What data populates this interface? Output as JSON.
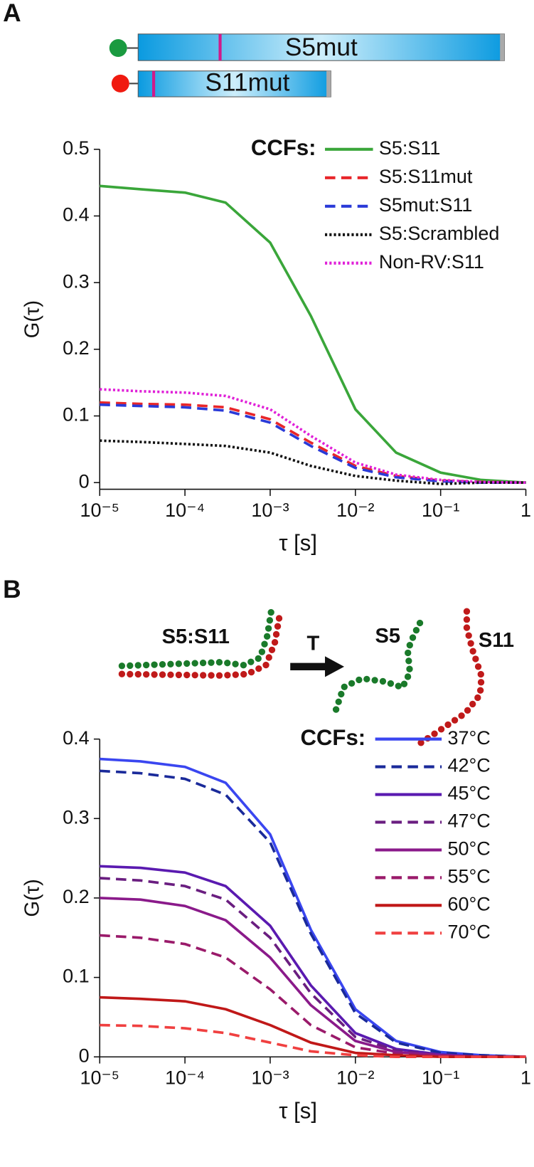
{
  "panel_labels": [
    "A",
    "B"
  ],
  "diagram_a": {
    "labels": [
      "S5mut",
      "S11mut"
    ]
  },
  "diagram_b": {
    "complex": "S5:S11",
    "arrow": "T",
    "strands": [
      "S5",
      "S11"
    ]
  },
  "chart_data": [
    {
      "type": "line",
      "x_label": "τ [s]",
      "y_label": "G(τ)",
      "legend_title": "CCFs:",
      "xscale": "log",
      "xlim": [
        1e-05,
        1
      ],
      "ylim": [
        -0.01,
        0.5
      ],
      "xticks": [
        {
          "value": 1e-05,
          "label": "10⁻⁵"
        },
        {
          "value": 0.0001,
          "label": "10⁻⁴"
        },
        {
          "value": 0.001,
          "label": "10⁻³"
        },
        {
          "value": 0.01,
          "label": "10⁻²"
        },
        {
          "value": 0.1,
          "label": "10⁻¹"
        },
        1
      ],
      "yticks": [
        0,
        0.1,
        0.2,
        0.3,
        0.4,
        0.5
      ],
      "x": [
        1e-05,
        3e-05,
        0.0001,
        0.0003,
        0.001,
        0.003,
        0.01,
        0.03,
        0.1,
        0.3,
        1
      ],
      "series": [
        {
          "name": "S5:S11",
          "color": "#3aa63a",
          "dash": "solid",
          "values": [
            0.445,
            0.44,
            0.435,
            0.42,
            0.36,
            0.25,
            0.11,
            0.045,
            0.015,
            0.004,
            0.0
          ]
        },
        {
          "name": "S5:S11mut",
          "color": "#e8262a",
          "dash": "dashed",
          "values": [
            0.12,
            0.118,
            0.117,
            0.113,
            0.095,
            0.06,
            0.025,
            0.01,
            0.003,
            0.001,
            0.0
          ]
        },
        {
          "name": "S5mut:S11",
          "color": "#2a3ad8",
          "dash": "dashed",
          "values": [
            0.117,
            0.115,
            0.113,
            0.108,
            0.09,
            0.055,
            0.022,
            0.008,
            0.002,
            0.0,
            0.0
          ]
        },
        {
          "name": "S5:Scrambled",
          "color": "#111111",
          "dash": "dotted",
          "values": [
            0.063,
            0.061,
            0.058,
            0.055,
            0.045,
            0.025,
            0.01,
            0.003,
            -0.002,
            0.0,
            0.0
          ]
        },
        {
          "name": "Non-RV:S11",
          "color": "#e020d8",
          "dash": "dotted",
          "values": [
            0.14,
            0.137,
            0.135,
            0.13,
            0.11,
            0.07,
            0.03,
            0.012,
            0.004,
            0.001,
            0.0
          ]
        }
      ]
    },
    {
      "type": "line",
      "x_label": "τ [s]",
      "y_label": "G(τ)",
      "legend_title": "CCFs:",
      "xscale": "log",
      "xlim": [
        1e-05,
        1
      ],
      "ylim": [
        0,
        0.4
      ],
      "xticks": [
        {
          "value": 1e-05,
          "label": "10⁻⁵"
        },
        {
          "value": 0.0001,
          "label": "10⁻⁴"
        },
        {
          "value": 0.001,
          "label": "10⁻³"
        },
        {
          "value": 0.01,
          "label": "10⁻²"
        },
        {
          "value": 0.1,
          "label": "10⁻¹"
        },
        1
      ],
      "yticks": [
        0,
        0.1,
        0.2,
        0.3,
        0.4
      ],
      "x": [
        1e-05,
        3e-05,
        0.0001,
        0.0003,
        0.001,
        0.003,
        0.01,
        0.03,
        0.1,
        0.3,
        1
      ],
      "series": [
        {
          "name": "37°C",
          "color": "#3a46f0",
          "dash": "solid",
          "values": [
            0.375,
            0.372,
            0.365,
            0.345,
            0.28,
            0.16,
            0.06,
            0.02,
            0.006,
            0.002,
            0.0
          ]
        },
        {
          "name": "42°C",
          "color": "#1a2a9a",
          "dash": "dashed",
          "values": [
            0.36,
            0.357,
            0.35,
            0.33,
            0.27,
            0.155,
            0.055,
            0.018,
            0.005,
            0.002,
            0.0
          ]
        },
        {
          "name": "45°C",
          "color": "#5a1ab0",
          "dash": "solid",
          "values": [
            0.24,
            0.238,
            0.232,
            0.215,
            0.165,
            0.09,
            0.03,
            0.01,
            0.003,
            0.0,
            0.0
          ]
        },
        {
          "name": "47°C",
          "color": "#6a1e80",
          "dash": "dashed",
          "values": [
            0.225,
            0.222,
            0.215,
            0.198,
            0.15,
            0.08,
            0.025,
            0.008,
            0.002,
            0.0,
            0.0
          ]
        },
        {
          "name": "50°C",
          "color": "#8a1a8a",
          "dash": "solid",
          "values": [
            0.2,
            0.198,
            0.19,
            0.172,
            0.125,
            0.065,
            0.02,
            0.006,
            0.002,
            0.0,
            0.0
          ]
        },
        {
          "name": "55°C",
          "color": "#9a1a6a",
          "dash": "dashed",
          "values": [
            0.153,
            0.15,
            0.142,
            0.125,
            0.085,
            0.04,
            0.012,
            0.004,
            0.001,
            0.0,
            0.0
          ]
        },
        {
          "name": "60°C",
          "color": "#c01818",
          "dash": "solid",
          "values": [
            0.075,
            0.073,
            0.07,
            0.06,
            0.04,
            0.018,
            0.005,
            0.002,
            0.0,
            0.0,
            0.0
          ]
        },
        {
          "name": "70°C",
          "color": "#f04040",
          "dash": "dashed",
          "values": [
            0.04,
            0.039,
            0.036,
            0.03,
            0.018,
            0.007,
            0.002,
            0.0,
            0.0,
            0.0,
            0.0
          ]
        }
      ]
    }
  ]
}
